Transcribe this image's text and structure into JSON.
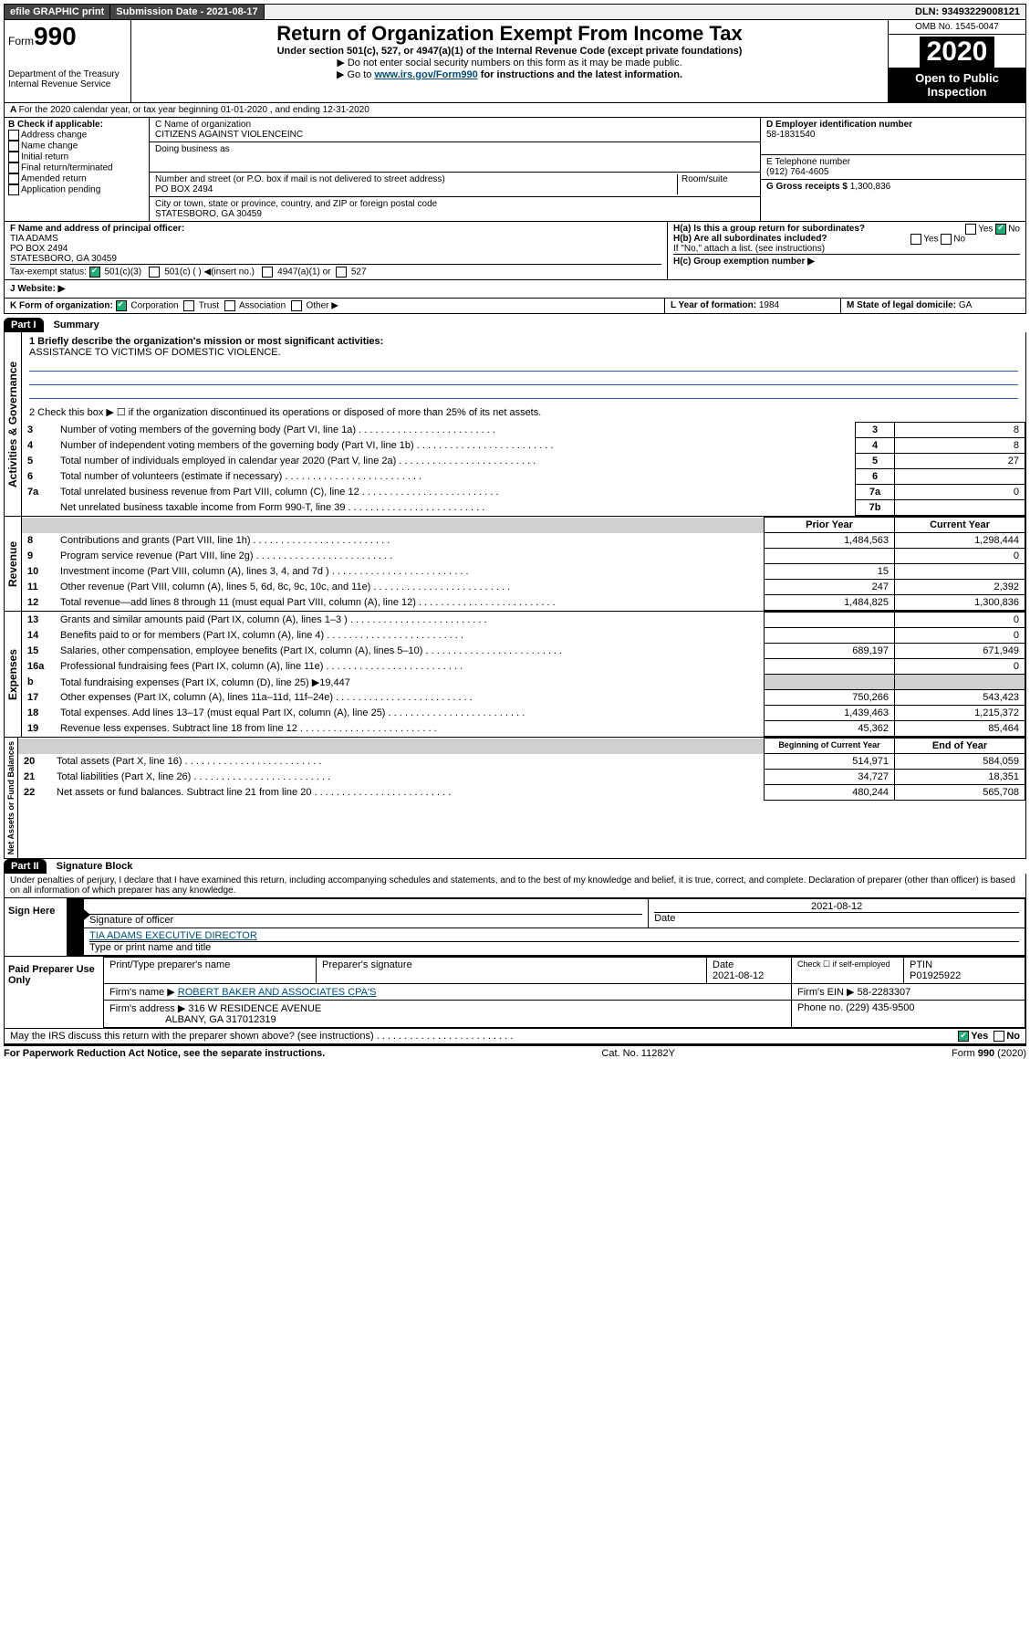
{
  "topbar": {
    "efile": "efile GRAPHIC print",
    "subdate_label": "Submission Date - 2021-08-17",
    "dln": "DLN: 93493229008121"
  },
  "header": {
    "form_prefix": "Form",
    "form_num": "990",
    "dept": "Department of the Treasury\nInternal Revenue Service",
    "title": "Return of Organization Exempt From Income Tax",
    "subtitle": "Under section 501(c), 527, or 4947(a)(1) of the Internal Revenue Code (except private foundations)",
    "note1": "▶ Do not enter social security numbers on this form as it may be made public.",
    "note2_pre": "▶ Go to ",
    "note2_link": "www.irs.gov/Form990",
    "note2_post": " for instructions and the latest information.",
    "omb": "OMB No. 1545-0047",
    "year": "2020",
    "open": "Open to Public Inspection"
  },
  "periodA": "For the 2020 calendar year, or tax year beginning 01-01-2020   , and ending 12-31-2020",
  "boxB": {
    "label": "B Check if applicable:",
    "items": [
      "Address change",
      "Name change",
      "Initial return",
      "Final return/terminated",
      "Amended return",
      "Application pending"
    ]
  },
  "boxC": {
    "name_label": "C Name of organization",
    "name": "CITIZENS AGAINST VIOLENCEINC",
    "dba_label": "Doing business as",
    "addr_label": "Number and street (or P.O. box if mail is not delivered to street address)",
    "suite_label": "Room/suite",
    "addr": "PO BOX 2494",
    "city_label": "City or town, state or province, country, and ZIP or foreign postal code",
    "city": "STATESBORO, GA  30459"
  },
  "boxD": {
    "label": "D Employer identification number",
    "value": "58-1831540"
  },
  "boxE": {
    "label": "E Telephone number",
    "value": "(912) 764-4605"
  },
  "boxG": {
    "label": "G Gross receipts $",
    "value": "1,300,836"
  },
  "boxF": {
    "label": "F  Name and address of principal officer:",
    "name": "TIA ADAMS",
    "addr1": "PO BOX 2494",
    "addr2": "STATESBORO, GA  30459"
  },
  "exempt": {
    "label": "Tax-exempt status:",
    "o1": "501(c)(3)",
    "o2": "501(c) (   ) ◀(insert no.)",
    "o3": "4947(a)(1) or",
    "o4": "527"
  },
  "boxH": {
    "ha": "H(a)  Is this a group return for subordinates?",
    "hb": "H(b)  Are all subordinates included?",
    "hb_note": "If \"No,\" attach a list. (see instructions)",
    "hc": "H(c)  Group exemption number ▶",
    "yes": "Yes",
    "no": "No"
  },
  "boxJ": "J   Website: ▶",
  "boxK": {
    "label": "K Form of organization:",
    "opts": [
      "Corporation",
      "Trust",
      "Association",
      "Other ▶"
    ]
  },
  "boxL": {
    "label": "L Year of formation:",
    "value": "1984"
  },
  "boxM": {
    "label": "M State of legal domicile:",
    "value": "GA"
  },
  "part1": {
    "title": "Part I",
    "subtitle": "Summary",
    "q1": "1  Briefly describe the organization's mission or most significant activities:",
    "mission": "ASSISTANCE TO VICTIMS OF DOMESTIC VIOLENCE.",
    "q2": "2   Check this box ▶ ☐  if the organization discontinued its operations or disposed of more than 25% of its net assets.",
    "vlabel1": "Activities & Governance",
    "vlabel2": "Revenue",
    "vlabel3": "Expenses",
    "vlabel4": "Net Assets or Fund Balances",
    "rows_gov": [
      {
        "n": "3",
        "t": "Number of voting members of the governing body (Part VI, line 1a)",
        "c": "3",
        "v": "8"
      },
      {
        "n": "4",
        "t": "Number of independent voting members of the governing body (Part VI, line 1b)",
        "c": "4",
        "v": "8"
      },
      {
        "n": "5",
        "t": "Total number of individuals employed in calendar year 2020 (Part V, line 2a)",
        "c": "5",
        "v": "27"
      },
      {
        "n": "6",
        "t": "Total number of volunteers (estimate if necessary)",
        "c": "6",
        "v": ""
      },
      {
        "n": "7a",
        "t": "Total unrelated business revenue from Part VIII, column (C), line 12",
        "c": "7a",
        "v": "0"
      },
      {
        "n": "",
        "t": "Net unrelated business taxable income from Form 990-T, line 39",
        "c": "7b",
        "v": ""
      }
    ],
    "hdr_prior": "Prior Year",
    "hdr_curr": "Current Year",
    "rows_rev": [
      {
        "n": "8",
        "t": "Contributions and grants (Part VIII, line 1h)",
        "p": "1,484,563",
        "c": "1,298,444"
      },
      {
        "n": "9",
        "t": "Program service revenue (Part VIII, line 2g)",
        "p": "",
        "c": "0"
      },
      {
        "n": "10",
        "t": "Investment income (Part VIII, column (A), lines 3, 4, and 7d )",
        "p": "15",
        "c": ""
      },
      {
        "n": "11",
        "t": "Other revenue (Part VIII, column (A), lines 5, 6d, 8c, 9c, 10c, and 11e)",
        "p": "247",
        "c": "2,392"
      },
      {
        "n": "12",
        "t": "Total revenue—add lines 8 through 11 (must equal Part VIII, column (A), line 12)",
        "p": "1,484,825",
        "c": "1,300,836"
      }
    ],
    "rows_exp": [
      {
        "n": "13",
        "t": "Grants and similar amounts paid (Part IX, column (A), lines 1–3 )",
        "p": "",
        "c": "0"
      },
      {
        "n": "14",
        "t": "Benefits paid to or for members (Part IX, column (A), line 4)",
        "p": "",
        "c": "0"
      },
      {
        "n": "15",
        "t": "Salaries, other compensation, employee benefits (Part IX, column (A), lines 5–10)",
        "p": "689,197",
        "c": "671,949"
      },
      {
        "n": "16a",
        "t": "Professional fundraising fees (Part IX, column (A), line 11e)",
        "p": "",
        "c": "0"
      },
      {
        "n": "b",
        "t": "Total fundraising expenses (Part IX, column (D), line 25) ▶19,447",
        "p": "SHADE",
        "c": "SHADE"
      },
      {
        "n": "17",
        "t": "Other expenses (Part IX, column (A), lines 11a–11d, 11f–24e)",
        "p": "750,266",
        "c": "543,423"
      },
      {
        "n": "18",
        "t": "Total expenses. Add lines 13–17 (must equal Part IX, column (A), line 25)",
        "p": "1,439,463",
        "c": "1,215,372"
      },
      {
        "n": "19",
        "t": "Revenue less expenses. Subtract line 18 from line 12",
        "p": "45,362",
        "c": "85,464"
      }
    ],
    "hdr_boy": "Beginning of Current Year",
    "hdr_eoy": "End of Year",
    "rows_net": [
      {
        "n": "20",
        "t": "Total assets (Part X, line 16)",
        "p": "514,971",
        "c": "584,059"
      },
      {
        "n": "21",
        "t": "Total liabilities (Part X, line 26)",
        "p": "34,727",
        "c": "18,351"
      },
      {
        "n": "22",
        "t": "Net assets or fund balances. Subtract line 21 from line 20",
        "p": "480,244",
        "c": "565,708"
      }
    ]
  },
  "part2": {
    "title": "Part II",
    "subtitle": "Signature Block",
    "perjury": "Under penalties of perjury, I declare that I have examined this return, including accompanying schedules and statements, and to the best of my knowledge and belief, it is true, correct, and complete. Declaration of preparer (other than officer) is based on all information of which preparer has any knowledge.",
    "sign_here": "Sign Here",
    "sig_officer": "Signature of officer",
    "sig_date": "2021-08-12",
    "date_label": "Date",
    "typed_name": "TIA ADAMS EXECUTIVE DIRECTOR",
    "typed_label": "Type or print name and title",
    "paid": "Paid Preparer Use Only",
    "prep_name_label": "Print/Type preparer's name",
    "prep_sig_label": "Preparer's signature",
    "prep_date": "2021-08-12",
    "check_se": "Check ☐ if self-employed",
    "ptin_label": "PTIN",
    "ptin": "P01925922",
    "firm_name_label": "Firm's name   ▶",
    "firm_name": "ROBERT BAKER AND ASSOCIATES CPA'S",
    "firm_ein_label": "Firm's EIN ▶",
    "firm_ein": "58-2283307",
    "firm_addr_label": "Firm's address ▶",
    "firm_addr1": "316 W RESIDENCE AVENUE",
    "firm_addr2": "ALBANY, GA  317012319",
    "phone_label": "Phone no.",
    "phone": "(229) 435-9500",
    "discuss": "May the IRS discuss this return with the preparer shown above? (see instructions)",
    "yes": "Yes",
    "no": "No"
  },
  "footer": {
    "pra": "For Paperwork Reduction Act Notice, see the separate instructions.",
    "cat": "Cat. No. 11282Y",
    "form": "Form 990 (2020)"
  }
}
